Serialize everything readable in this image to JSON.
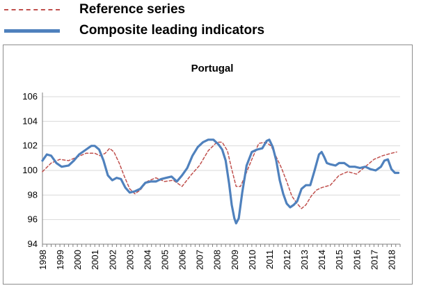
{
  "legend": {
    "reference_label": "Reference series",
    "cli_label": "Composite leading indicators"
  },
  "chart_data": {
    "type": "line",
    "title": "Portugal",
    "xlabel": "",
    "ylabel": "",
    "ylim": [
      94,
      106
    ],
    "xlim": [
      1998,
      2018.5
    ],
    "yticks": [
      94,
      96,
      98,
      100,
      102,
      104,
      106
    ],
    "xticks": [
      "1998",
      "1999",
      "2000",
      "2001",
      "2002",
      "2003",
      "2004",
      "2005",
      "2006",
      "2007",
      "2008",
      "2009",
      "2010",
      "2011",
      "2012",
      "2013",
      "2014",
      "2015",
      "2016",
      "2017",
      "2018"
    ],
    "grid": true,
    "colors": {
      "reference": "#c0504d",
      "cli": "#4f81bd",
      "grid": "#d9d9d9",
      "axis": "#808080"
    },
    "series": [
      {
        "name": "Reference series",
        "style": "dashed",
        "x": [
          1998.0,
          1998.5,
          1999.0,
          1999.5,
          2000.0,
          2000.5,
          2001.0,
          2001.3,
          2001.6,
          2001.85,
          2002.1,
          2002.4,
          2002.7,
          2003.0,
          2003.3,
          2003.6,
          2004.0,
          2004.5,
          2005.0,
          2005.5,
          2006.0,
          2006.5,
          2007.0,
          2007.5,
          2008.0,
          2008.3,
          2008.6,
          2008.85,
          2009.1,
          2009.35,
          2009.6,
          2010.0,
          2010.4,
          2010.8,
          2011.1,
          2011.4,
          2011.7,
          2012.0,
          2012.3,
          2012.6,
          2012.85,
          2013.1,
          2013.4,
          2013.7,
          2014.0,
          2014.5,
          2015.0,
          2015.5,
          2016.0,
          2016.5,
          2017.0,
          2017.5,
          2018.0,
          2018.3
        ],
        "y": [
          99.9,
          100.6,
          100.9,
          100.8,
          101.1,
          101.4,
          101.4,
          101.2,
          101.4,
          101.8,
          101.5,
          100.6,
          99.5,
          98.5,
          98.1,
          98.4,
          99.1,
          99.4,
          99.1,
          99.2,
          98.7,
          99.6,
          100.4,
          101.6,
          102.3,
          102.3,
          101.6,
          100.1,
          98.7,
          98.7,
          99.5,
          100.9,
          102.2,
          102.3,
          102.0,
          101.1,
          100.2,
          99.1,
          97.9,
          97.3,
          96.9,
          97.2,
          97.9,
          98.4,
          98.6,
          98.8,
          99.6,
          99.9,
          99.7,
          100.3,
          100.9,
          101.2,
          101.4,
          101.5
        ]
      },
      {
        "name": "Composite leading indicators",
        "style": "solid",
        "x": [
          1998.0,
          1998.25,
          1998.5,
          1998.8,
          1999.1,
          1999.5,
          1999.8,
          2000.1,
          2000.5,
          2000.8,
          2001.0,
          2001.25,
          2001.5,
          2001.75,
          2002.0,
          2002.25,
          2002.5,
          2002.75,
          2003.0,
          2003.3,
          2003.6,
          2003.9,
          2004.2,
          2004.5,
          2004.8,
          2005.1,
          2005.4,
          2005.7,
          2006.0,
          2006.3,
          2006.6,
          2006.9,
          2007.2,
          2007.5,
          2007.8,
          2008.1,
          2008.3,
          2008.5,
          2008.7,
          2008.85,
          2009.0,
          2009.1,
          2009.25,
          2009.45,
          2009.7,
          2010.0,
          2010.3,
          2010.6,
          2010.85,
          2011.0,
          2011.2,
          2011.4,
          2011.6,
          2011.8,
          2012.0,
          2012.2,
          2012.4,
          2012.6,
          2012.85,
          2013.1,
          2013.35,
          2013.6,
          2013.85,
          2014.0,
          2014.15,
          2014.3,
          2014.5,
          2014.8,
          2015.0,
          2015.3,
          2015.6,
          2015.9,
          2016.2,
          2016.5,
          2016.8,
          2017.1,
          2017.4,
          2017.6,
          2017.8,
          2018.0,
          2018.2,
          2018.4
        ],
        "y": [
          100.8,
          101.3,
          101.2,
          100.6,
          100.3,
          100.4,
          100.8,
          101.3,
          101.7,
          102.0,
          102.0,
          101.7,
          100.8,
          99.6,
          99.2,
          99.4,
          99.3,
          98.6,
          98.2,
          98.3,
          98.5,
          99.0,
          99.1,
          99.1,
          99.3,
          99.4,
          99.5,
          99.1,
          99.6,
          100.2,
          101.2,
          101.9,
          102.3,
          102.5,
          102.5,
          102.1,
          101.7,
          100.8,
          98.9,
          97.2,
          96.1,
          95.7,
          96.1,
          98.2,
          100.4,
          101.5,
          101.7,
          101.8,
          102.4,
          102.5,
          101.9,
          100.8,
          99.2,
          98.1,
          97.3,
          97.0,
          97.2,
          97.5,
          98.5,
          98.8,
          98.8,
          100.0,
          101.3,
          101.5,
          101.1,
          100.6,
          100.5,
          100.4,
          100.6,
          100.6,
          100.3,
          100.3,
          100.2,
          100.3,
          100.1,
          100.0,
          100.3,
          100.8,
          100.9,
          100.1,
          99.8,
          99.8
        ]
      }
    ]
  }
}
